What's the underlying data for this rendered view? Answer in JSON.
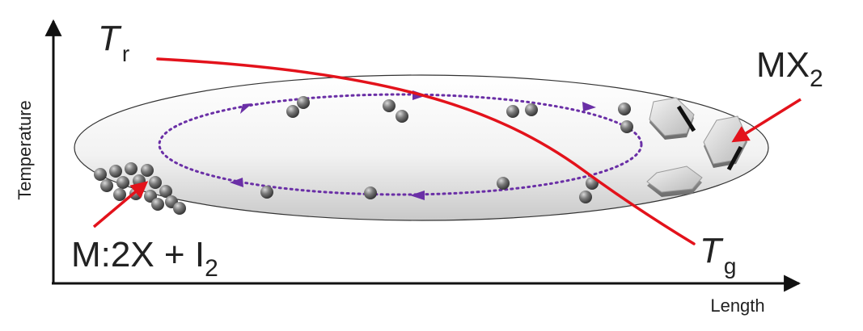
{
  "axes": {
    "y_label": "Temperature",
    "x_label": "Length"
  },
  "temperatures": {
    "reaction_symbol": "T",
    "reaction_subscript": "r",
    "growth_symbol": "T",
    "growth_subscript": "g"
  },
  "species": {
    "precursor_main": "M:2X + I",
    "precursor_subscript": "2",
    "product_main": "MX",
    "product_subscript": "2"
  },
  "colors": {
    "axis": "#111111",
    "temperature_curve": "#e3121b",
    "pointer_arrow": "#e3121b",
    "transport_loop": "#6a2fa6",
    "tube_outline": "#333333",
    "crystal_edge": "#111111"
  },
  "icons": {
    "particle": "gray-sphere-icon",
    "crystal": "hexagonal-crystal-icon"
  }
}
